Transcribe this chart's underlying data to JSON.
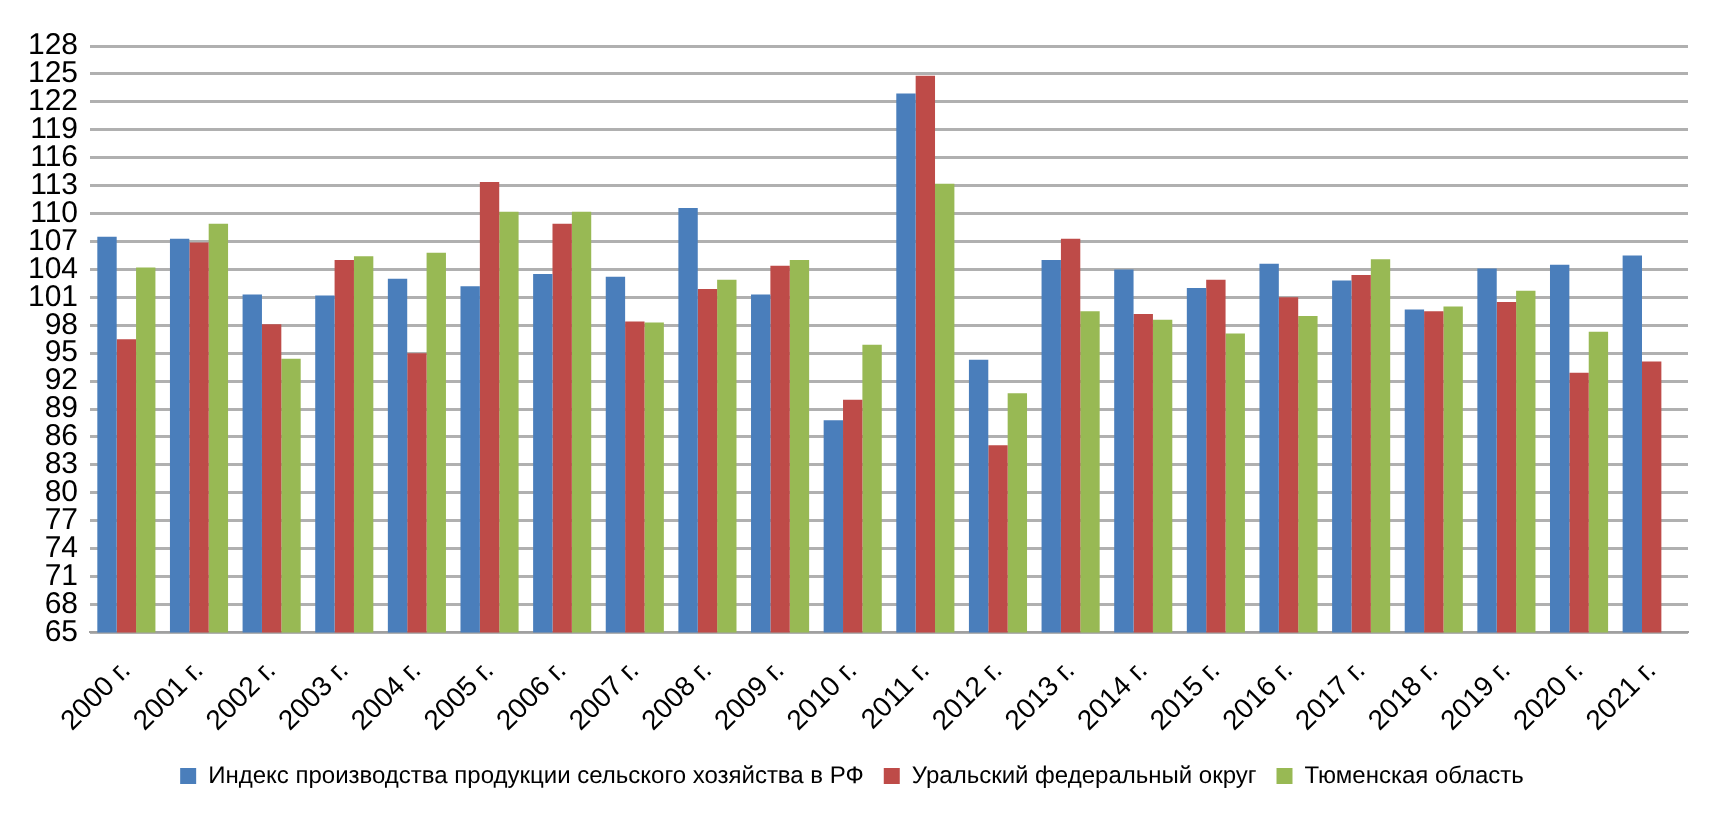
{
  "chart_data": {
    "type": "bar",
    "categories": [
      "2000 г.",
      "2001 г.",
      "2002 г.",
      "2003 г.",
      "2004 г.",
      "2005 г.",
      "2006 г.",
      "2007 г.",
      "2008 г.",
      "2009 г.",
      "2010 г.",
      "2011 г.",
      "2012 г.",
      "2013 г.",
      "2014 г.",
      "2015 г.",
      "2016 г.",
      "2017 г.",
      "2018 г.",
      "2019 г.",
      "2020 г.",
      "2021 г."
    ],
    "series": [
      {
        "name": "Индекс производства продукции сельского хозяйства в РФ",
        "color": "#4a7ebb",
        "values": [
          107.5,
          107.3,
          101.3,
          101.2,
          103.0,
          102.2,
          103.5,
          103.2,
          110.6,
          101.3,
          87.8,
          122.9,
          94.3,
          105.0,
          104.0,
          102.0,
          104.6,
          102.8,
          99.7,
          104.1,
          104.5,
          105.5
        ]
      },
      {
        "name": "Уральский федеральный округ",
        "color": "#be4b48",
        "values": [
          96.5,
          106.9,
          98.1,
          105.0,
          95.0,
          113.4,
          108.9,
          98.4,
          101.9,
          104.4,
          90.0,
          124.8,
          85.1,
          107.3,
          99.2,
          102.9,
          101.0,
          103.4,
          99.5,
          100.5,
          92.9,
          94.1
        ]
      },
      {
        "name": "Тюменская область",
        "color": "#98b954",
        "values": [
          104.2,
          108.9,
          94.4,
          105.4,
          105.8,
          110.2,
          110.2,
          98.3,
          102.9,
          105.0,
          95.9,
          113.2,
          90.7,
          99.5,
          98.6,
          97.1,
          99.0,
          105.1,
          100.0,
          101.7,
          97.3,
          null
        ]
      }
    ],
    "ylim": [
      65,
      128
    ],
    "yticks": [
      65,
      68,
      71,
      74,
      77,
      80,
      83,
      86,
      89,
      92,
      95,
      98,
      101,
      104,
      107,
      110,
      113,
      116,
      119,
      122,
      125,
      128
    ],
    "grid": "y",
    "legend": "bottom"
  }
}
